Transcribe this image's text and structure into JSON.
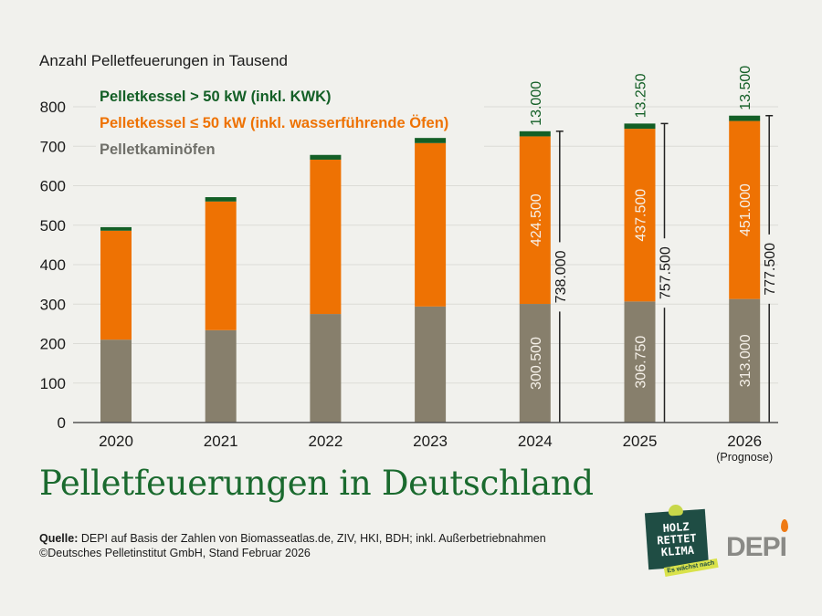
{
  "chart_data": {
    "type": "bar",
    "stacked": true,
    "title": "Pelletfeuerungen in Deutschland",
    "ylabel": "Anzahl Pelletfeuerungen in Tausend",
    "xlabel": "",
    "ylim": [
      0,
      800
    ],
    "yticks": [
      0,
      100,
      200,
      300,
      400,
      500,
      600,
      700,
      800
    ],
    "grid": true,
    "legend_position": "top-left",
    "categories": [
      "2020",
      "2021",
      "2022",
      "2023",
      "2024",
      "2025",
      "2026"
    ],
    "category_sublabels": [
      "",
      "",
      "",
      "",
      "",
      "",
      "(Prognose)"
    ],
    "series": [
      {
        "name": "Pelletkaminöfen",
        "color": "#877f6c",
        "values": [
          210,
          234,
          275,
          294,
          300.5,
          306.75,
          313.0
        ],
        "labels": [
          "",
          "",
          "",
          "",
          "300.500",
          "306.750",
          "313.000"
        ]
      },
      {
        "name": "Pelletkessel ≤ 50 kW (inkl. wasserführende Öfen)",
        "color": "#ee7203",
        "values": [
          276,
          326,
          391,
          414,
          424.5,
          437.5,
          451.0
        ],
        "labels": [
          "",
          "",
          "",
          "",
          "424.500",
          "437.500",
          "451.000"
        ]
      },
      {
        "name": "Pelletkessel > 50 kW (inkl. KWK)",
        "color": "#135f26",
        "values": [
          9,
          11,
          12,
          13,
          13.0,
          13.25,
          13.5
        ],
        "labels": [
          "",
          "",
          "",
          "",
          "13.000",
          "13.250",
          "13.500"
        ]
      }
    ],
    "totals": [
      null,
      null,
      null,
      null,
      738.0,
      757.5,
      777.5
    ],
    "total_labels": [
      "",
      "",
      "",
      "",
      "738.000",
      "757.500",
      "777.500"
    ]
  },
  "legend": [
    {
      "label": "Pelletkessel > 50 kW (inkl. KWK)",
      "color": "#135f26"
    },
    {
      "label": "Pelletkessel ≤ 50 kW (inkl. wasserführende Öfen)",
      "color": "#ee7203"
    },
    {
      "label": "Pelletkaminöfen",
      "color": "#6f6f69"
    }
  ],
  "headline": "Pelletfeuerungen in Deutschland",
  "source": {
    "label": "Quelle:",
    "text": " DEPI auf Basis der Zahlen von Biomasseatlas.de, ZIV, HKI, BDH; inkl. Außerbetriebnahmen",
    "copyright": "©Deutsches Pelletinstitut GmbH, Stand Februar 2026"
  },
  "logos": {
    "holz": [
      "HOLZ",
      "RETTET",
      "KLIMA"
    ],
    "holz_tag": "Es wächst nach",
    "depi": "DEPI"
  },
  "colors": {
    "headline": "#1a6a2e",
    "background": "#f1f1ed",
    "gridline": "#dcdcd6",
    "axis": "#555555"
  }
}
